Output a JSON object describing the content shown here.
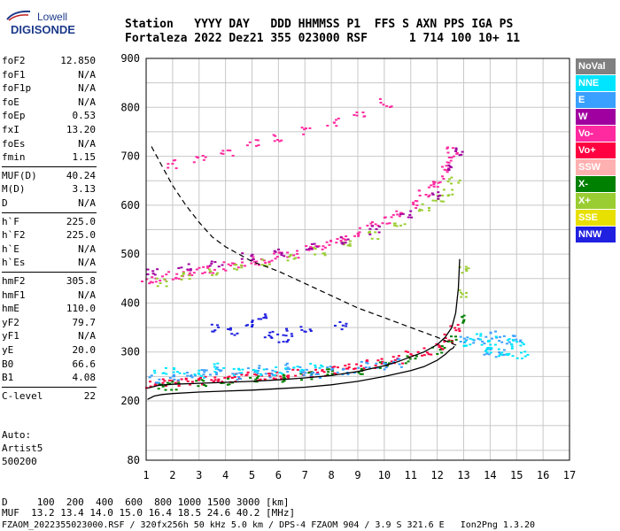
{
  "logo": {
    "line1": "Lowell",
    "line2": "DIGISONDE",
    "color": "#1d3a8a"
  },
  "header": {
    "line1": "Station   YYYY DAY   DDD HHMMSS P1  FFS S AXN PPS IGA PS",
    "line2": "Fortaleza 2022 Dez21 355 023000 RSF      1 714 100 10+ 11"
  },
  "params": [
    {
      "name": "foF2",
      "value": "12.850"
    },
    {
      "name": "foF1",
      "value": "N/A"
    },
    {
      "name": "foF1p",
      "value": "N/A"
    },
    {
      "name": "foE",
      "value": "N/A"
    },
    {
      "name": "foEp",
      "value": "0.53"
    },
    {
      "name": "fxI",
      "value": "13.20"
    },
    {
      "name": "foEs",
      "value": "N/A"
    },
    {
      "name": "fmin",
      "value": "1.15"
    },
    {
      "name": "MUF(D)",
      "value": "40.24"
    },
    {
      "name": "M(D)",
      "value": "3.13"
    },
    {
      "name": "D",
      "value": "N/A"
    },
    {
      "name": "h`F",
      "value": "225.0"
    },
    {
      "name": "h`F2",
      "value": "225.0"
    },
    {
      "name": "h`E",
      "value": "N/A"
    },
    {
      "name": "h`Es",
      "value": "N/A"
    },
    {
      "name": "hmF2",
      "value": "305.8"
    },
    {
      "name": "hmF1",
      "value": "N/A"
    },
    {
      "name": "hmE",
      "value": "110.0"
    },
    {
      "name": "yF2",
      "value": "79.7"
    },
    {
      "name": "yF1",
      "value": "N/A"
    },
    {
      "name": "yE",
      "value": "20.0"
    },
    {
      "name": "B0",
      "value": "66.6"
    },
    {
      "name": "B1",
      "value": "4.08"
    },
    {
      "name": "C-level",
      "value": "22"
    }
  ],
  "autoscale": [
    "Auto:",
    "Artist5",
    "500200"
  ],
  "legend": [
    {
      "label": "NoVal",
      "color": "#808080"
    },
    {
      "label": "NNE",
      "color": "#00e5ff"
    },
    {
      "label": "E",
      "color": "#3aa0ff"
    },
    {
      "label": "W",
      "color": "#a000a0"
    },
    {
      "label": "Vo-",
      "color": "#ff2aa0"
    },
    {
      "label": "Vo+",
      "color": "#ff0040"
    },
    {
      "label": "SSW",
      "color": "#ffb0b0"
    },
    {
      "label": "X-",
      "color": "#008000"
    },
    {
      "label": "X+",
      "color": "#9acd32"
    },
    {
      "label": "SSE",
      "color": "#e8e000"
    },
    {
      "label": "NNW",
      "color": "#2020e0"
    }
  ],
  "footer": {
    "line1": "D     100  200  400  600  800 1000 1500 3000 [km]",
    "line2": "MUF  13.2 13.4 14.0 15.0 16.4 18.5 24.6 40.2 [MHz]",
    "line3": "FZAOM_2022355023000.RSF / 320fx256h 50 kHz 5.0 km / DPS-4 FZAOM 904 / 3.9 S 321.6 E   Ion2Png 1.3.20"
  },
  "chart_data": {
    "type": "scatter",
    "xlim": [
      1,
      17
    ],
    "ylim": [
      80,
      900
    ],
    "xticks": [
      "1",
      "2",
      "3",
      "4",
      "5",
      "6",
      "7",
      "8",
      "9",
      "10",
      "11",
      "12",
      "13",
      "14",
      "15",
      "16",
      "17"
    ],
    "yticks": [
      "80",
      "200",
      "300",
      "400",
      "500",
      "600",
      "700",
      "800",
      "900"
    ],
    "grid": true,
    "series": [
      {
        "name": "O-trace",
        "style": "line",
        "color": "#000000",
        "x": [
          1.05,
          1.5,
          2,
          3,
          4,
          5,
          6,
          7,
          8,
          9,
          10,
          10.5,
          11,
          11.5,
          12,
          12.3,
          12.55,
          12.7,
          12.8,
          12.85
        ],
        "y": [
          226,
          232,
          234,
          236,
          238,
          240,
          243,
          247,
          252,
          260,
          272,
          280,
          290,
          300,
          315,
          330,
          350,
          380,
          430,
          490
        ]
      },
      {
        "name": "X-trace",
        "style": "line",
        "color": "#000000",
        "x": [
          1.05,
          1.3,
          1.6,
          2,
          3,
          4,
          5,
          6,
          7,
          8,
          9,
          10,
          11,
          11.5,
          12,
          12.3,
          12.5,
          12.6,
          12.65
        ],
        "y": [
          203,
          210,
          213,
          215,
          218,
          220,
          222,
          225,
          228,
          233,
          240,
          250,
          262,
          270,
          283,
          295,
          305,
          308,
          312
        ]
      },
      {
        "name": "MUF(D)",
        "style": "dashed",
        "color": "#000000",
        "x": [
          1.2,
          1.6,
          2,
          2.5,
          3,
          3.5,
          4,
          4.5,
          5,
          6,
          7,
          8,
          9,
          10,
          11,
          12,
          12.8
        ],
        "y": [
          720,
          680,
          640,
          600,
          565,
          535,
          515,
          500,
          485,
          465,
          440,
          415,
          390,
          370,
          350,
          330,
          312
        ]
      },
      {
        "name": "Vo+",
        "style": "points",
        "color": "#ff0040",
        "x": [
          1.2,
          1.5,
          2,
          2.5,
          3,
          3.5,
          4,
          4.5,
          5,
          5.5,
          6,
          6.5,
          7,
          7.5,
          8,
          8.5,
          9,
          9.5,
          10,
          10.5,
          11,
          11.5,
          12,
          12.3,
          12.6
        ],
        "y": [
          236,
          238,
          240,
          242,
          243,
          245,
          247,
          249,
          251,
          253,
          255,
          257,
          259,
          262,
          265,
          268,
          272,
          276,
          281,
          287,
          294,
          302,
          316,
          330,
          350
        ]
      },
      {
        "name": "X-",
        "style": "points",
        "color": "#008000",
        "x": [
          1.5,
          2,
          3,
          4,
          5,
          6,
          7,
          8,
          9,
          10,
          11,
          12,
          12.5,
          12.8
        ],
        "y": [
          230,
          232,
          236,
          240,
          244,
          248,
          253,
          258,
          265,
          273,
          285,
          305,
          330,
          370
        ]
      },
      {
        "name": "E",
        "style": "points",
        "color": "#3aa0ff",
        "x": [
          1.3,
          2,
          2.6,
          3.2,
          3.8,
          4.4,
          5,
          5.6,
          6.2,
          6.8,
          7.4,
          8,
          8.6,
          9.2,
          9.8,
          10.4,
          13,
          13.5,
          14,
          14.5,
          15,
          13.8,
          14.3
        ],
        "y": [
          245,
          250,
          255,
          258,
          262,
          252,
          265,
          258,
          270,
          262,
          255,
          268,
          262,
          275,
          270,
          280,
          330,
          320,
          335,
          325,
          330,
          305,
          300
        ]
      },
      {
        "name": "NNE",
        "style": "points",
        "color": "#00e5ff",
        "x": [
          1.5,
          2.2,
          3,
          3.7,
          4.5,
          5.2,
          6,
          6.7,
          7.4,
          13.2,
          13.7,
          14.2,
          14.6,
          15,
          15.2,
          13.4,
          14,
          14.8
        ],
        "y": [
          260,
          265,
          255,
          270,
          262,
          258,
          262,
          268,
          275,
          315,
          308,
          302,
          298,
          312,
          295,
          330,
          325,
          320
        ]
      },
      {
        "name": "Vo-",
        "style": "points",
        "color": "#ff2aa0",
        "x": [
          1,
          1.5,
          2,
          2.5,
          3,
          3.5,
          4,
          4.5,
          5,
          5.5,
          6,
          6.5,
          7,
          7.5,
          8,
          8.5,
          9,
          9.5,
          10,
          10.5,
          11,
          11.5,
          11.8,
          12,
          12.2,
          12.4,
          12.5,
          2,
          3,
          4,
          5,
          6,
          7,
          8,
          9,
          10
        ],
        "y": [
          448,
          452,
          458,
          463,
          468,
          472,
          477,
          482,
          487,
          492,
          497,
          503,
          510,
          518,
          526,
          535,
          546,
          559,
          572,
          588,
          605,
          625,
          640,
          655,
          675,
          695,
          715,
          685,
          698,
          712,
          726,
          740,
          755,
          772,
          790,
          810
        ]
      },
      {
        "name": "X+",
        "style": "points",
        "color": "#9acd32",
        "x": [
          1.5,
          2.5,
          3.5,
          4.5,
          5.5,
          6.5,
          7.5,
          8.5,
          9.5,
          10.5,
          11.5,
          12,
          12.3,
          12.6,
          12.9,
          13
        ],
        "y": [
          445,
          455,
          462,
          473,
          485,
          495,
          508,
          522,
          540,
          560,
          595,
          615,
          630,
          650,
          420,
          470
        ]
      },
      {
        "name": "NNW",
        "style": "points",
        "color": "#2020e0",
        "x": [
          3.5,
          4.2,
          4.9,
          5.6,
          6.3,
          7,
          6.1,
          5.3,
          8.3
        ],
        "y": [
          352,
          345,
          360,
          338,
          342,
          348,
          330,
          372,
          355
        ]
      },
      {
        "name": "W",
        "style": "points",
        "color": "#a000a0",
        "x": [
          1.2,
          2.4,
          3.6,
          4.8,
          6,
          7.2,
          8.4,
          9.6,
          10.8,
          12,
          12.5,
          12.7
        ],
        "y": [
          462,
          475,
          485,
          497,
          505,
          515,
          530,
          550,
          585,
          620,
          680,
          710
        ]
      }
    ]
  }
}
